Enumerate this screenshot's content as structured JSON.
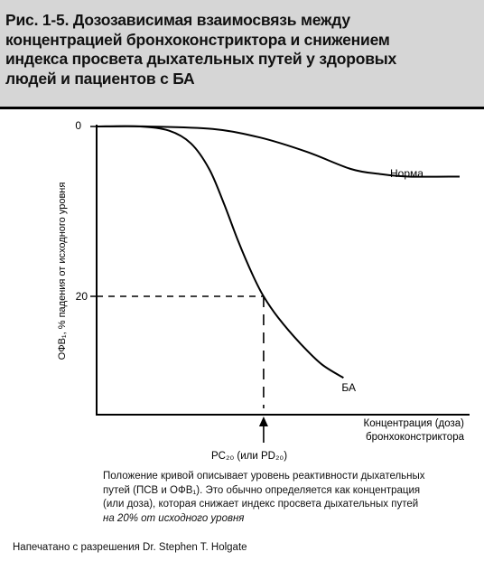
{
  "figure": {
    "title_lines": [
      "Рис. 1-5. Дозозависимая взаимосвязь между",
      "концентрацией бронхоконстриктора и снижением",
      "индекса просвета дыхательных путей у здоровых",
      "людей и пациентов с БА"
    ],
    "caption_lines": [
      "Положение кривой описывает уровень реактивности дыхательных",
      "путей (ПСВ и ОФВ₁). Это обычно определяется как концентрация",
      "(или доза), которая снижает индекс просвета дыхательных путей"
    ],
    "caption_italic_line": "на 20% от исходного уровня",
    "footer": "Напечатано с разрешения Dr. Stephen T. Holgate"
  },
  "chart_data": {
    "type": "line",
    "ylabel": "ОФВ₁, % падения от исходного уровня",
    "xlabel_lines": [
      "Концентрация (доза)",
      "бронхоконстриктора"
    ],
    "y_ticks": [
      "0",
      "20"
    ],
    "y_inverted": true,
    "pc20_label": "PC₂₀ (или PD₂₀)",
    "series": [
      {
        "name": "Норма",
        "points": [
          [
            0.0,
            0.0
          ],
          [
            0.14,
            0.0
          ],
          [
            0.32,
            0.3
          ],
          [
            0.45,
            1.3
          ],
          [
            0.58,
            3.0
          ],
          [
            0.7,
            5.0
          ],
          [
            0.78,
            5.6
          ],
          [
            0.86,
            5.9
          ],
          [
            1.0,
            5.9
          ]
        ]
      },
      {
        "name": "БА",
        "points": [
          [
            0.0,
            0.0
          ],
          [
            0.12,
            0.0
          ],
          [
            0.2,
            0.5
          ],
          [
            0.26,
            2.0
          ],
          [
            0.31,
            5.0
          ],
          [
            0.35,
            9.0
          ],
          [
            0.39,
            13.5
          ],
          [
            0.43,
            17.5
          ],
          [
            0.46,
            20.0
          ],
          [
            0.5,
            22.5
          ],
          [
            0.56,
            25.5
          ],
          [
            0.62,
            28.0
          ],
          [
            0.68,
            29.6
          ]
        ]
      }
    ],
    "pc20": {
      "x": 0.46,
      "y": 20
    }
  }
}
